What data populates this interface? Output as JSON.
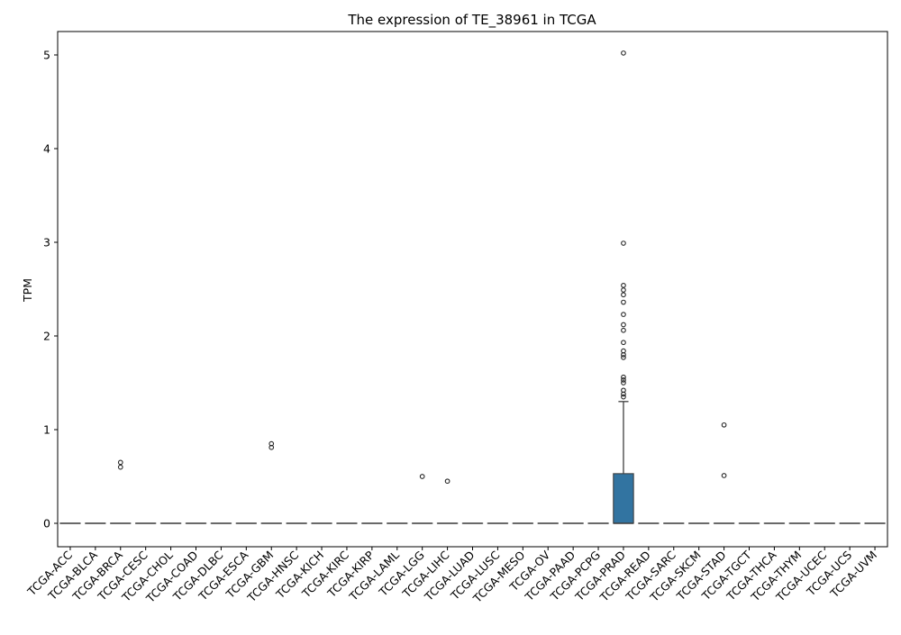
{
  "chart_data": {
    "type": "box",
    "title": "The expression of TE_38961 in TCGA",
    "xlabel": "",
    "ylabel": "TPM",
    "ylim": [
      -0.25,
      5.25
    ],
    "yticks": [
      0,
      1,
      2,
      3,
      4,
      5
    ],
    "grid": false,
    "legend": "none",
    "box_color": "#3274a1",
    "categories": [
      "TCGA-ACC",
      "TCGA-BLCA",
      "TCGA-BRCA",
      "TCGA-CESC",
      "TCGA-CHOL",
      "TCGA-COAD",
      "TCGA-DLBC",
      "TCGA-ESCA",
      "TCGA-GBM",
      "TCGA-HNSC",
      "TCGA-KICH",
      "TCGA-KIRC",
      "TCGA-KIRP",
      "TCGA-LAML",
      "TCGA-LGG",
      "TCGA-LIHC",
      "TCGA-LUAD",
      "TCGA-LUSC",
      "TCGA-MESO",
      "TCGA-OV",
      "TCGA-PAAD",
      "TCGA-PCPG",
      "TCGA-PRAD",
      "TCGA-READ",
      "TCGA-SARC",
      "TCGA-SKCM",
      "TCGA-STAD",
      "TCGA-TGCT",
      "TCGA-THCA",
      "TCGA-THYM",
      "TCGA-UCEC",
      "TCGA-UCS",
      "TCGA-UVM"
    ],
    "boxes": [
      {
        "q1": 0,
        "median": 0,
        "q3": 0,
        "whislo": 0,
        "whishi": 0,
        "fliers": []
      },
      {
        "q1": 0,
        "median": 0,
        "q3": 0,
        "whislo": 0,
        "whishi": 0,
        "fliers": []
      },
      {
        "q1": 0,
        "median": 0,
        "q3": 0,
        "whislo": 0,
        "whishi": 0,
        "fliers": [
          0.65,
          0.6
        ]
      },
      {
        "q1": 0,
        "median": 0,
        "q3": 0,
        "whislo": 0,
        "whishi": 0,
        "fliers": []
      },
      {
        "q1": 0,
        "median": 0,
        "q3": 0,
        "whislo": 0,
        "whishi": 0,
        "fliers": []
      },
      {
        "q1": 0,
        "median": 0,
        "q3": 0,
        "whislo": 0,
        "whishi": 0,
        "fliers": []
      },
      {
        "q1": 0,
        "median": 0,
        "q3": 0,
        "whislo": 0,
        "whishi": 0,
        "fliers": []
      },
      {
        "q1": 0,
        "median": 0,
        "q3": 0,
        "whislo": 0,
        "whishi": 0,
        "fliers": []
      },
      {
        "q1": 0,
        "median": 0,
        "q3": 0,
        "whislo": 0,
        "whishi": 0,
        "fliers": [
          0.85,
          0.81
        ]
      },
      {
        "q1": 0,
        "median": 0,
        "q3": 0,
        "whislo": 0,
        "whishi": 0,
        "fliers": []
      },
      {
        "q1": 0,
        "median": 0,
        "q3": 0,
        "whislo": 0,
        "whishi": 0,
        "fliers": []
      },
      {
        "q1": 0,
        "median": 0,
        "q3": 0,
        "whislo": 0,
        "whishi": 0,
        "fliers": []
      },
      {
        "q1": 0,
        "median": 0,
        "q3": 0,
        "whislo": 0,
        "whishi": 0,
        "fliers": []
      },
      {
        "q1": 0,
        "median": 0,
        "q3": 0,
        "whislo": 0,
        "whishi": 0,
        "fliers": []
      },
      {
        "q1": 0,
        "median": 0,
        "q3": 0,
        "whislo": 0,
        "whishi": 0,
        "fliers": [
          0.5
        ]
      },
      {
        "q1": 0,
        "median": 0,
        "q3": 0,
        "whislo": 0,
        "whishi": 0,
        "fliers": [
          0.45
        ]
      },
      {
        "q1": 0,
        "median": 0,
        "q3": 0,
        "whislo": 0,
        "whishi": 0,
        "fliers": []
      },
      {
        "q1": 0,
        "median": 0,
        "q3": 0,
        "whislo": 0,
        "whishi": 0,
        "fliers": []
      },
      {
        "q1": 0,
        "median": 0,
        "q3": 0,
        "whislo": 0,
        "whishi": 0,
        "fliers": []
      },
      {
        "q1": 0,
        "median": 0,
        "q3": 0,
        "whislo": 0,
        "whishi": 0,
        "fliers": []
      },
      {
        "q1": 0,
        "median": 0,
        "q3": 0,
        "whislo": 0,
        "whishi": 0,
        "fliers": []
      },
      {
        "q1": 0,
        "median": 0,
        "q3": 0,
        "whislo": 0,
        "whishi": 0,
        "fliers": []
      },
      {
        "q1": 0,
        "median": 0,
        "q3": 0.53,
        "whislo": 0,
        "whishi": 1.3,
        "fliers": [
          5.02,
          2.99,
          2.54,
          2.49,
          2.44,
          2.36,
          2.23,
          2.12,
          2.06,
          1.93,
          1.84,
          1.8,
          1.77,
          1.56,
          1.53,
          1.5,
          1.42,
          1.38,
          1.35
        ]
      },
      {
        "q1": 0,
        "median": 0,
        "q3": 0,
        "whislo": 0,
        "whishi": 0,
        "fliers": []
      },
      {
        "q1": 0,
        "median": 0,
        "q3": 0,
        "whislo": 0,
        "whishi": 0,
        "fliers": []
      },
      {
        "q1": 0,
        "median": 0,
        "q3": 0,
        "whislo": 0,
        "whishi": 0,
        "fliers": []
      },
      {
        "q1": 0,
        "median": 0,
        "q3": 0,
        "whislo": 0,
        "whishi": 0,
        "fliers": [
          1.05,
          0.51
        ]
      },
      {
        "q1": 0,
        "median": 0,
        "q3": 0,
        "whislo": 0,
        "whishi": 0,
        "fliers": []
      },
      {
        "q1": 0,
        "median": 0,
        "q3": 0,
        "whislo": 0,
        "whishi": 0,
        "fliers": []
      },
      {
        "q1": 0,
        "median": 0,
        "q3": 0,
        "whislo": 0,
        "whishi": 0,
        "fliers": []
      },
      {
        "q1": 0,
        "median": 0,
        "q3": 0,
        "whislo": 0,
        "whishi": 0,
        "fliers": []
      },
      {
        "q1": 0,
        "median": 0,
        "q3": 0,
        "whislo": 0,
        "whishi": 0,
        "fliers": []
      },
      {
        "q1": 0,
        "median": 0,
        "q3": 0,
        "whislo": 0,
        "whishi": 0,
        "fliers": []
      }
    ]
  }
}
